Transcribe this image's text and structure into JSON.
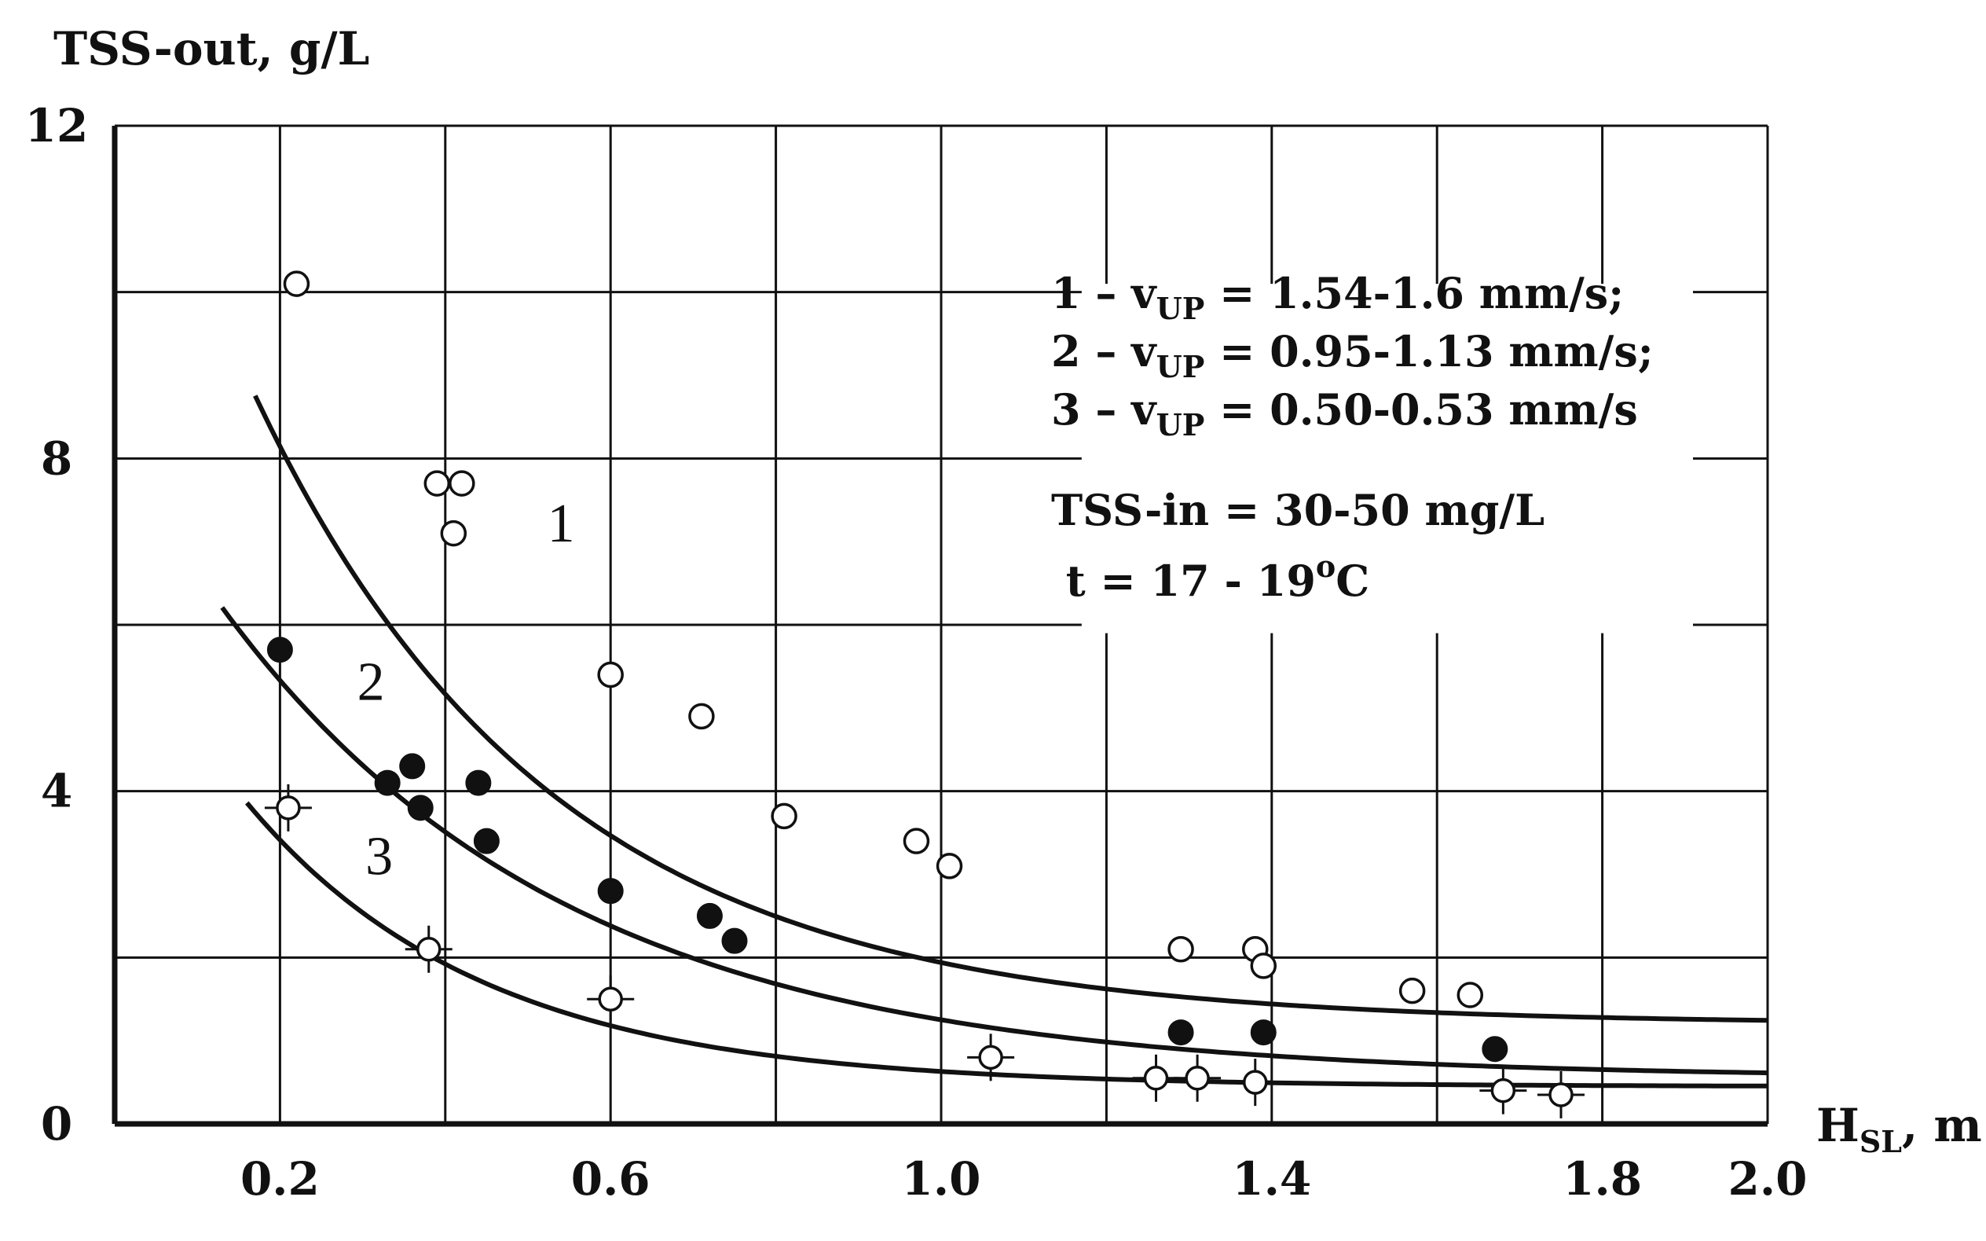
{
  "chart_data": {
    "type": "scatter",
    "title": "",
    "ylabel": "TSS-out, g/L",
    "xlabel": {
      "main": "H",
      "sub": "SL",
      "unit": ", m"
    },
    "xlim": [
      0,
      2.0
    ],
    "ylim": [
      0,
      12
    ],
    "x_ticks": [
      {
        "value": 0.2,
        "label": "0.2"
      },
      {
        "value": 0.6,
        "label": "0.6"
      },
      {
        "value": 1.0,
        "label": "1.0"
      },
      {
        "value": 1.4,
        "label": "1.4"
      },
      {
        "value": 1.8,
        "label": "1.8"
      },
      {
        "value": 2.0,
        "label": "2.0"
      }
    ],
    "y_ticks": [
      {
        "value": 0,
        "label": "0"
      },
      {
        "value": 4,
        "label": "4"
      },
      {
        "value": 8,
        "label": "8"
      },
      {
        "value": 12,
        "label": "12"
      }
    ],
    "grid_x": [
      0.2,
      0.4,
      0.6,
      0.8,
      1.0,
      1.2,
      1.4,
      1.6,
      1.8
    ],
    "grid_y": [
      2,
      4,
      6,
      8,
      10
    ],
    "grid": true,
    "series": [
      {
        "name": "1",
        "marker": "open-circle",
        "curve_label_pos": {
          "x": 0.54,
          "y": 7.0
        },
        "curve": {
          "a": 1.2,
          "b": 12.16,
          "k": 2.8,
          "x_start": 0.17,
          "x_end": 2.0
        },
        "points": [
          {
            "x": 0.22,
            "y": 10.1
          },
          {
            "x": 0.39,
            "y": 7.7
          },
          {
            "x": 0.42,
            "y": 7.7
          },
          {
            "x": 0.41,
            "y": 7.1
          },
          {
            "x": 0.6,
            "y": 5.4
          },
          {
            "x": 0.71,
            "y": 4.9
          },
          {
            "x": 0.81,
            "y": 3.7
          },
          {
            "x": 0.97,
            "y": 3.4
          },
          {
            "x": 1.01,
            "y": 3.1
          },
          {
            "x": 1.29,
            "y": 2.1
          },
          {
            "x": 1.38,
            "y": 2.1
          },
          {
            "x": 1.39,
            "y": 1.9
          },
          {
            "x": 1.57,
            "y": 1.6
          },
          {
            "x": 1.64,
            "y": 1.55
          }
        ]
      },
      {
        "name": "2",
        "marker": "filled-circle",
        "curve_label_pos": {
          "x": 0.31,
          "y": 5.1
        },
        "curve": {
          "a": 0.55,
          "b": 7.73,
          "k": 2.4,
          "x_start": 0.13,
          "x_end": 2.0
        },
        "points": [
          {
            "x": 0.2,
            "y": 5.7
          },
          {
            "x": 0.33,
            "y": 4.1
          },
          {
            "x": 0.36,
            "y": 4.3
          },
          {
            "x": 0.37,
            "y": 3.8
          },
          {
            "x": 0.44,
            "y": 4.1
          },
          {
            "x": 0.45,
            "y": 3.4
          },
          {
            "x": 0.6,
            "y": 2.8
          },
          {
            "x": 0.72,
            "y": 2.5
          },
          {
            "x": 0.75,
            "y": 2.2
          },
          {
            "x": 1.29,
            "y": 1.1
          },
          {
            "x": 1.39,
            "y": 1.1
          },
          {
            "x": 1.67,
            "y": 0.9
          }
        ]
      },
      {
        "name": "3",
        "marker": "open-circle-cross",
        "curve_label_pos": {
          "x": 0.32,
          "y": 3.0
        },
        "curve": {
          "a": 0.45,
          "b": 5.97,
          "k": 3.5,
          "x_start": 0.16,
          "x_end": 2.0
        },
        "points": [
          {
            "x": 0.21,
            "y": 3.8
          },
          {
            "x": 0.38,
            "y": 2.1
          },
          {
            "x": 0.6,
            "y": 1.5
          },
          {
            "x": 1.06,
            "y": 0.8
          },
          {
            "x": 1.26,
            "y": 0.55
          },
          {
            "x": 1.31,
            "y": 0.55
          },
          {
            "x": 1.38,
            "y": 0.5
          },
          {
            "x": 1.68,
            "y": 0.4
          },
          {
            "x": 1.75,
            "y": 0.35
          }
        ]
      }
    ]
  },
  "legend": {
    "lines": [
      {
        "prefix": "1 – v",
        "sub": "UP",
        "suffix": " = 1.54-1.6 mm/s;"
      },
      {
        "prefix": "2 – v",
        "sub": "UP",
        "suffix": " = 0.95-1.13 mm/s;"
      },
      {
        "prefix": "3 – v",
        "sub": "UP",
        "suffix": " = 0.50-0.53 mm/s"
      }
    ],
    "tss_in": "TSS-in = 30-50 mg/L",
    "temp_prefix": " t = 17 - 19",
    "temp_sup": "o",
    "temp_suffix": "C"
  }
}
